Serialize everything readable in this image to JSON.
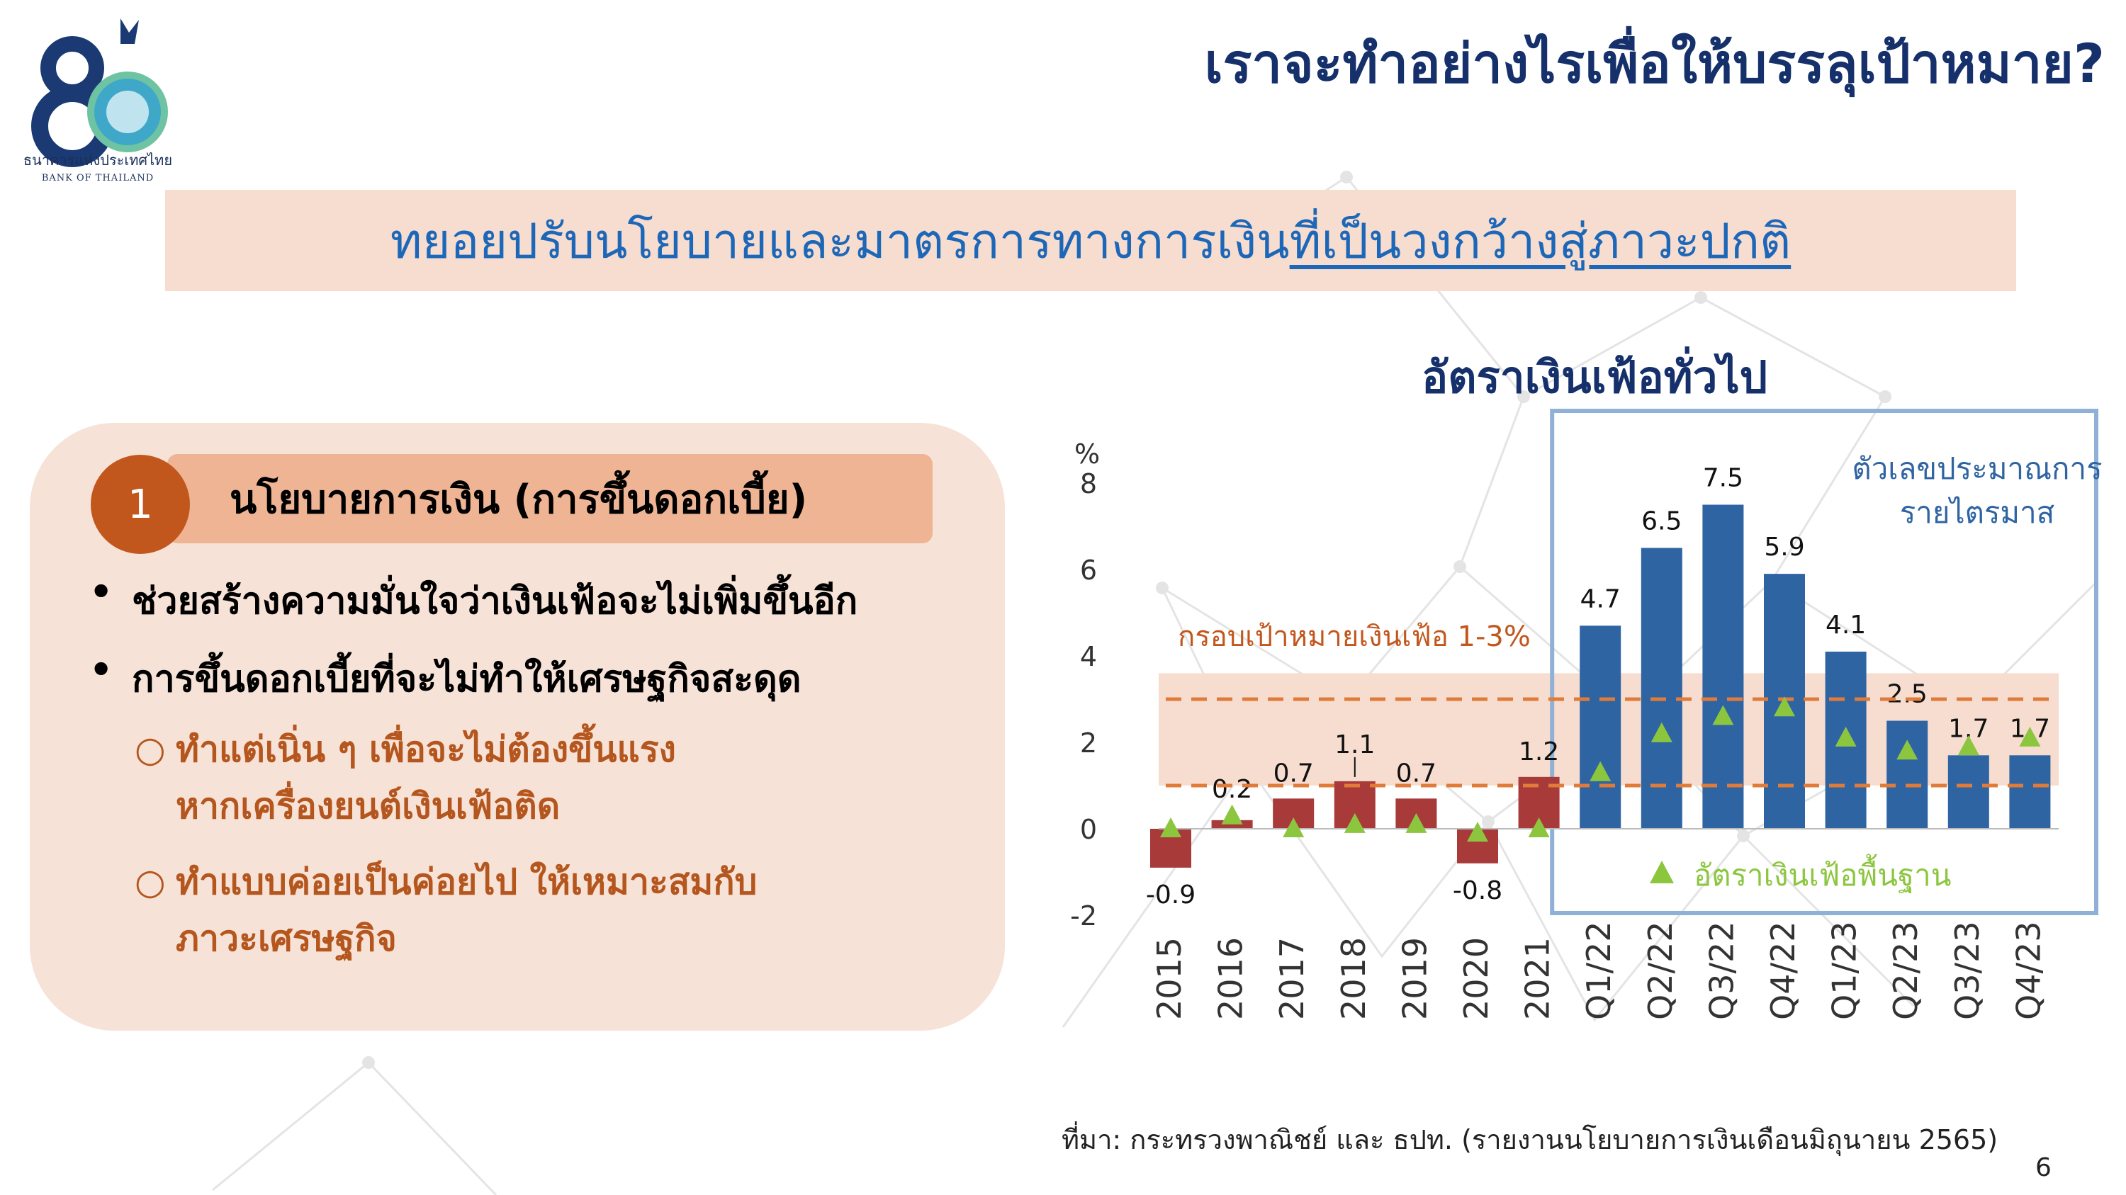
{
  "header": {
    "title": "เราจะทำอย่างไรเพื่อให้บรรลุเป้าหมาย?",
    "logo_text_th": "ธนาคารแห่งประเทศไทย",
    "logo_text_en": "BANK OF THAILAND",
    "logo_number": "80"
  },
  "banner": {
    "text_plain": "ทยอยปรับนโยบายและมาตรการทางการเงิน",
    "text_underlined": "ที่เป็นวงกว้างสู่ภาวะปกติ"
  },
  "panel": {
    "number": "1",
    "heading": "นโยบายการเงิน (การขึ้นดอกเบี้ย)",
    "bullets": [
      "ช่วยสร้างความมั่นใจว่าเงินเฟ้อจะไม่เพิ่มขึ้นอีก",
      "การขึ้นดอกเบี้ยที่จะไม่ทำให้เศรษฐกิจสะดุด"
    ],
    "subbullets": [
      {
        "line1": "ทำแต่เนิ่น ๆ เพื่อจะไม่ต้องขึ้นแรง",
        "line2": "หากเครื่องยนต์เงินเฟ้อติด"
      },
      {
        "line1": "ทำแบบค่อยเป็นค่อยไป ให้เหมาะสมกับ",
        "line2": "ภาวะเศรษฐกิจ"
      }
    ],
    "bullet_symbol": "•",
    "sub_symbol": "○"
  },
  "chart_title": "อัตราเงินเฟ้อทั่วไป",
  "chart_data": {
    "type": "bar",
    "ylabel": "%",
    "ylim": [
      -2,
      8
    ],
    "yticks": [
      -2,
      0,
      2,
      4,
      6,
      8
    ],
    "categories": [
      "2015",
      "2016",
      "2017",
      "2018",
      "2019",
      "2020",
      "2021",
      "Q1/22",
      "Q2/22",
      "Q3/22",
      "Q4/22",
      "Q1/23",
      "Q2/23",
      "Q3/23",
      "Q4/23"
    ],
    "series": [
      {
        "values": [
          -0.9,
          0.2,
          0.7,
          1.1,
          0.7,
          -0.8,
          1.2,
          4.7,
          6.5,
          7.5,
          5.9,
          4.1,
          2.5,
          1.7,
          1.7
        ],
        "colors": [
          "#a83a3a",
          "#a83a3a",
          "#a83a3a",
          "#a83a3a",
          "#a83a3a",
          "#a83a3a",
          "#a83a3a",
          "#2f64a3",
          "#2f64a3",
          "#2f64a3",
          "#2f64a3",
          "#2f64a3",
          "#2f64a3",
          "#2f64a3",
          "#2f64a3"
        ]
      },
      {
        "name": "อัตราเงินเฟ้อพื้นฐาน",
        "marker": "triangle",
        "color": "#8cc63f",
        "values": [
          0.0,
          0.3,
          0.0,
          0.1,
          0.1,
          -0.1,
          0.0,
          1.3,
          2.2,
          2.6,
          2.8,
          2.1,
          1.8,
          1.9,
          2.1
        ]
      }
    ],
    "target_band": {
      "label": "กรอบเป้าหมายเงินเฟ้อ 1-3%",
      "low": 1,
      "high": 3,
      "color": "#e07b39"
    },
    "forecast_box": {
      "label_line1": "ตัวเลขประมาณการ",
      "label_line2": "รายไตรมาส",
      "from_category": "Q1/22",
      "color": "#8fb1d6"
    },
    "legend_position": "bottom-right inside forecast box"
  },
  "source": "ที่มา: กระทรวงพาณิชย์ และ ธปท. (รายงานนโยบายการเงินเดือนมิถุนายน  2565)",
  "page_number": "6"
}
